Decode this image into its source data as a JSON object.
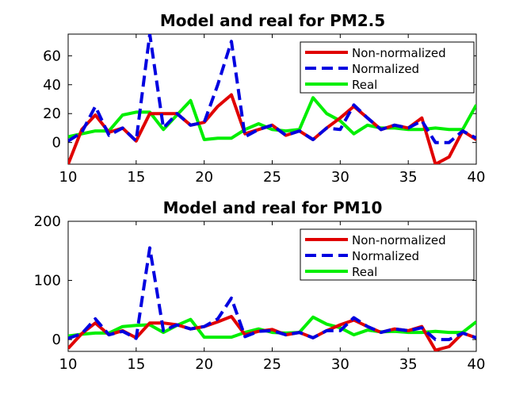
{
  "figure": {
    "background": "#ffffff"
  },
  "chart_data": [
    {
      "type": "line",
      "title": "Model and real for PM2.5",
      "xlabel": "",
      "ylabel": "",
      "xlim": [
        10,
        40
      ],
      "ylim": [
        -15,
        75
      ],
      "xticks": [
        10,
        15,
        20,
        25,
        30,
        35,
        40
      ],
      "yticks": [
        0,
        20,
        40,
        60
      ],
      "grid": false,
      "legend": "top-right",
      "x": [
        10,
        11,
        12,
        13,
        14,
        15,
        16,
        17,
        18,
        19,
        20,
        21,
        22,
        23,
        24,
        25,
        26,
        27,
        28,
        29,
        30,
        31,
        32,
        33,
        34,
        35,
        36,
        37,
        38,
        39,
        40
      ],
      "series": [
        {
          "name": "Non-normalized",
          "color": "#e00000",
          "dash": "solid",
          "values": [
            -15,
            9,
            19,
            7,
            10,
            1,
            20,
            20,
            20,
            12,
            14,
            25,
            33,
            6,
            9,
            12,
            5,
            8,
            2,
            10,
            17,
            25,
            17,
            9,
            12,
            10,
            17,
            -15,
            -10,
            8,
            2
          ]
        },
        {
          "name": "Normalized",
          "color": "#0000e0",
          "dash": "dashed",
          "values": [
            1,
            7,
            25,
            5,
            10,
            1,
            75,
            10,
            20,
            12,
            14,
            40,
            70,
            4,
            9,
            12,
            5,
            8,
            2,
            10,
            9,
            26,
            17,
            9,
            12,
            10,
            15,
            0,
            0,
            8,
            3
          ]
        },
        {
          "name": "Real",
          "color": "#00ee00",
          "dash": "solid",
          "values": [
            4,
            6,
            8,
            8,
            19,
            21,
            21,
            9,
            19,
            29,
            2,
            3,
            3,
            9,
            13,
            9,
            8,
            9,
            31,
            20,
            15,
            6,
            12,
            10,
            10,
            9,
            9,
            10,
            9,
            9,
            26
          ]
        }
      ]
    },
    {
      "type": "line",
      "title": "Model and real for PM10",
      "xlabel": "",
      "ylabel": "",
      "xlim": [
        10,
        40
      ],
      "ylim": [
        -20,
        200
      ],
      "xticks": [
        10,
        15,
        20,
        25,
        30,
        35,
        40
      ],
      "yticks": [
        0,
        100,
        200
      ],
      "grid": false,
      "legend": "top-right",
      "x": [
        10,
        11,
        12,
        13,
        14,
        15,
        16,
        17,
        18,
        19,
        20,
        21,
        22,
        23,
        24,
        25,
        26,
        27,
        28,
        29,
        30,
        31,
        32,
        33,
        34,
        35,
        36,
        37,
        38,
        39,
        40
      ],
      "series": [
        {
          "name": "Non-normalized",
          "color": "#e00000",
          "dash": "solid",
          "values": [
            -15,
            10,
            28,
            8,
            15,
            3,
            28,
            28,
            25,
            18,
            22,
            30,
            39,
            8,
            14,
            17,
            8,
            12,
            3,
            15,
            25,
            33,
            22,
            12,
            18,
            15,
            22,
            -18,
            -12,
            11,
            3
          ]
        },
        {
          "name": "Normalized",
          "color": "#0000e0",
          "dash": "dashed",
          "values": [
            2,
            10,
            35,
            8,
            14,
            2,
            155,
            15,
            25,
            18,
            22,
            35,
            70,
            5,
            14,
            15,
            8,
            12,
            3,
            15,
            15,
            37,
            22,
            12,
            18,
            15,
            20,
            0,
            0,
            11,
            3
          ]
        },
        {
          "name": "Real",
          "color": "#00ee00",
          "dash": "solid",
          "values": [
            6,
            9,
            11,
            11,
            22,
            24,
            25,
            12,
            24,
            34,
            4,
            4,
            4,
            12,
            18,
            12,
            11,
            12,
            38,
            26,
            20,
            8,
            16,
            13,
            14,
            12,
            12,
            14,
            12,
            12,
            30
          ]
        }
      ]
    }
  ]
}
